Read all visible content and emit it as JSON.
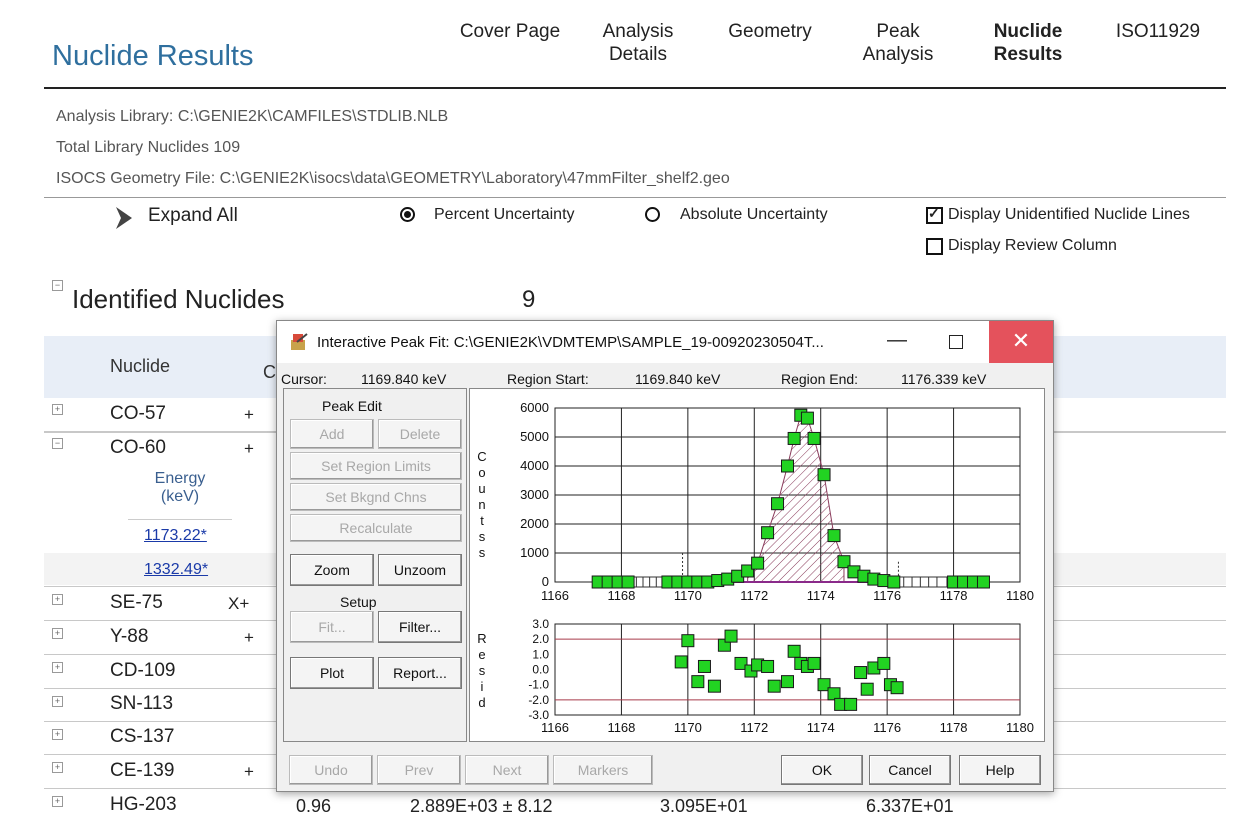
{
  "page": {
    "title": "Nuclide Results",
    "nav": [
      {
        "label": "Cover Page",
        "active": false
      },
      {
        "label": "Analysis\nDetails",
        "active": false
      },
      {
        "label": "Geometry",
        "active": false
      },
      {
        "label": "Peak\nAnalysis",
        "active": false
      },
      {
        "label": "Nuclide\nResults",
        "active": true
      },
      {
        "label": "ISO11929",
        "active": false
      }
    ],
    "info": {
      "library": "Analysis Library: C:\\GENIE2K\\CAMFILES\\STDLIB.NLB",
      "total": "Total Library Nuclides 109",
      "geometry": "ISOCS Geometry File: C:\\GENIE2K\\isocs\\data\\GEOMETRY\\Laboratory\\47mmFilter_shelf2.geo"
    },
    "options": {
      "expand_all": "Expand All",
      "percent": "Percent Uncertainty",
      "absolute": "Absolute Uncertainty",
      "display_unidentified": "Display Unidentified Nuclide Lines",
      "display_review": "Display Review Column"
    },
    "section": {
      "title": "Identified Nuclides",
      "count": "9"
    },
    "table": {
      "col_nuclide": "Nuclide",
      "col_partial": "C",
      "energy_header": "Energy\n(keV)",
      "rows": [
        {
          "name": "CO-57",
          "flag": "+",
          "expanded": false
        },
        {
          "name": "CO-60",
          "flag": "+",
          "expanded": true
        },
        {
          "name": "SE-75",
          "flag": "X+",
          "expanded": false
        },
        {
          "name": "Y-88",
          "flag": "+",
          "expanded": false
        },
        {
          "name": "CD-109",
          "flag": "",
          "expanded": false
        },
        {
          "name": "SN-113",
          "flag": "",
          "expanded": false
        },
        {
          "name": "CS-137",
          "flag": "",
          "expanded": false
        },
        {
          "name": "CE-139",
          "flag": "+",
          "expanded": false
        },
        {
          "name": "HG-203",
          "flag": "",
          "expanded": false
        }
      ],
      "energies": [
        "1173.22*",
        "1332.49*"
      ],
      "hg203": {
        "v1": "0.96",
        "v2": "2.889E+03 ± 8.12",
        "v3": "3.095E+01",
        "v4": "6.337E+01"
      }
    }
  },
  "dialog": {
    "title": "Interactive  Peak  Fit: C:\\GENIE2K\\VDMTEMP\\SAMPLE_19-00920230504T...",
    "cursor_label": "Cursor:",
    "cursor_value": "1169.840 keV",
    "region_start_label": "Region Start:",
    "region_start_value": "1169.840 keV",
    "region_end_label": "Region End:",
    "region_end_value": "1176.339 keV",
    "peak_edit": "Peak Edit",
    "buttons": {
      "add": "Add",
      "delete": "Delete",
      "set_region": "Set Region Limits",
      "set_bkgnd": "Set Bkgnd Chns",
      "recalculate": "Recalculate",
      "zoom": "Zoom",
      "unzoom": "Unzoom",
      "setup": "Setup",
      "fit": "Fit...",
      "filter": "Filter...",
      "plot": "Plot",
      "report": "Report...",
      "undo": "Undo",
      "prev": "Prev",
      "next": "Next",
      "markers": "Markers",
      "ok": "OK",
      "cancel": "Cancel",
      "help": "Help"
    },
    "counts_label": "Counts",
    "resid_label": "Resid"
  },
  "chart_data": [
    {
      "type": "scatter",
      "title": "",
      "ylabel": "Counts",
      "xlim": [
        1166,
        1180
      ],
      "ylim": [
        0,
        6000
      ],
      "x_ticks": [
        "1166",
        "1168",
        "1170",
        "1172",
        "1174",
        "1176",
        "1178",
        "1180"
      ],
      "y_ticks": [
        "0",
        "1000",
        "2000",
        "3000",
        "4000",
        "5000",
        "6000"
      ],
      "grid": true,
      "series": [
        {
          "values_x": [
            1167.3,
            1167.6,
            1167.9,
            1168.2,
            1169.4,
            1169.7,
            1170.0,
            1170.3,
            1170.6,
            1170.9,
            1171.2,
            1171.5,
            1171.8,
            1172.1,
            1172.4,
            1172.7,
            1173.0,
            1173.2,
            1173.4,
            1173.6,
            1173.8,
            1174.1,
            1174.4,
            1174.7,
            1175.0,
            1175.3,
            1175.6,
            1175.9,
            1176.2,
            1178.0,
            1178.3,
            1178.6,
            1178.9
          ],
          "values_y": [
            0,
            0,
            0,
            0,
            0,
            0,
            0,
            0,
            0,
            50,
            100,
            200,
            380,
            650,
            1700,
            2700,
            4000,
            4950,
            5750,
            5650,
            4950,
            3700,
            1600,
            700,
            350,
            200,
            100,
            50,
            0,
            0,
            0,
            0,
            0
          ]
        }
      ]
    },
    {
      "type": "scatter",
      "title": "",
      "ylabel": "Resid",
      "xlim": [
        1166,
        1180
      ],
      "ylim": [
        -3.0,
        3.0
      ],
      "x_ticks": [
        "1166",
        "1168",
        "1170",
        "1172",
        "1174",
        "1176",
        "1178",
        "1180"
      ],
      "y_ticks": [
        "3.0",
        "2.0",
        "1.0",
        "0.0",
        "-1.0",
        "-2.0",
        "-3.0"
      ],
      "grid": true,
      "series": [
        {
          "values_x": [
            1169.8,
            1170.0,
            1170.3,
            1170.5,
            1170.8,
            1171.1,
            1171.3,
            1171.6,
            1171.9,
            1172.1,
            1172.4,
            1172.6,
            1173.0,
            1173.2,
            1173.4,
            1173.6,
            1173.8,
            1174.1,
            1174.4,
            1174.6,
            1174.9,
            1175.2,
            1175.4,
            1175.6,
            1175.9
          ],
          "values_y": [
            0.5,
            1.9,
            -0.8,
            0.2,
            -1.1,
            1.6,
            2.2,
            0.4,
            -0.1,
            0.3,
            0.2,
            -1.1,
            -0.8,
            1.2,
            0.4,
            0.2,
            0.4,
            -1.0,
            -1.6,
            -2.3,
            -2.3,
            -0.2,
            -1.3,
            0.1,
            0.4
          ]
        },
        {
          "values_x": [
            1176.1,
            1176.3
          ],
          "values_y": [
            -1.0,
            -1.2
          ]
        }
      ],
      "reference_lines": [
        2.0,
        -2.0
      ]
    }
  ]
}
